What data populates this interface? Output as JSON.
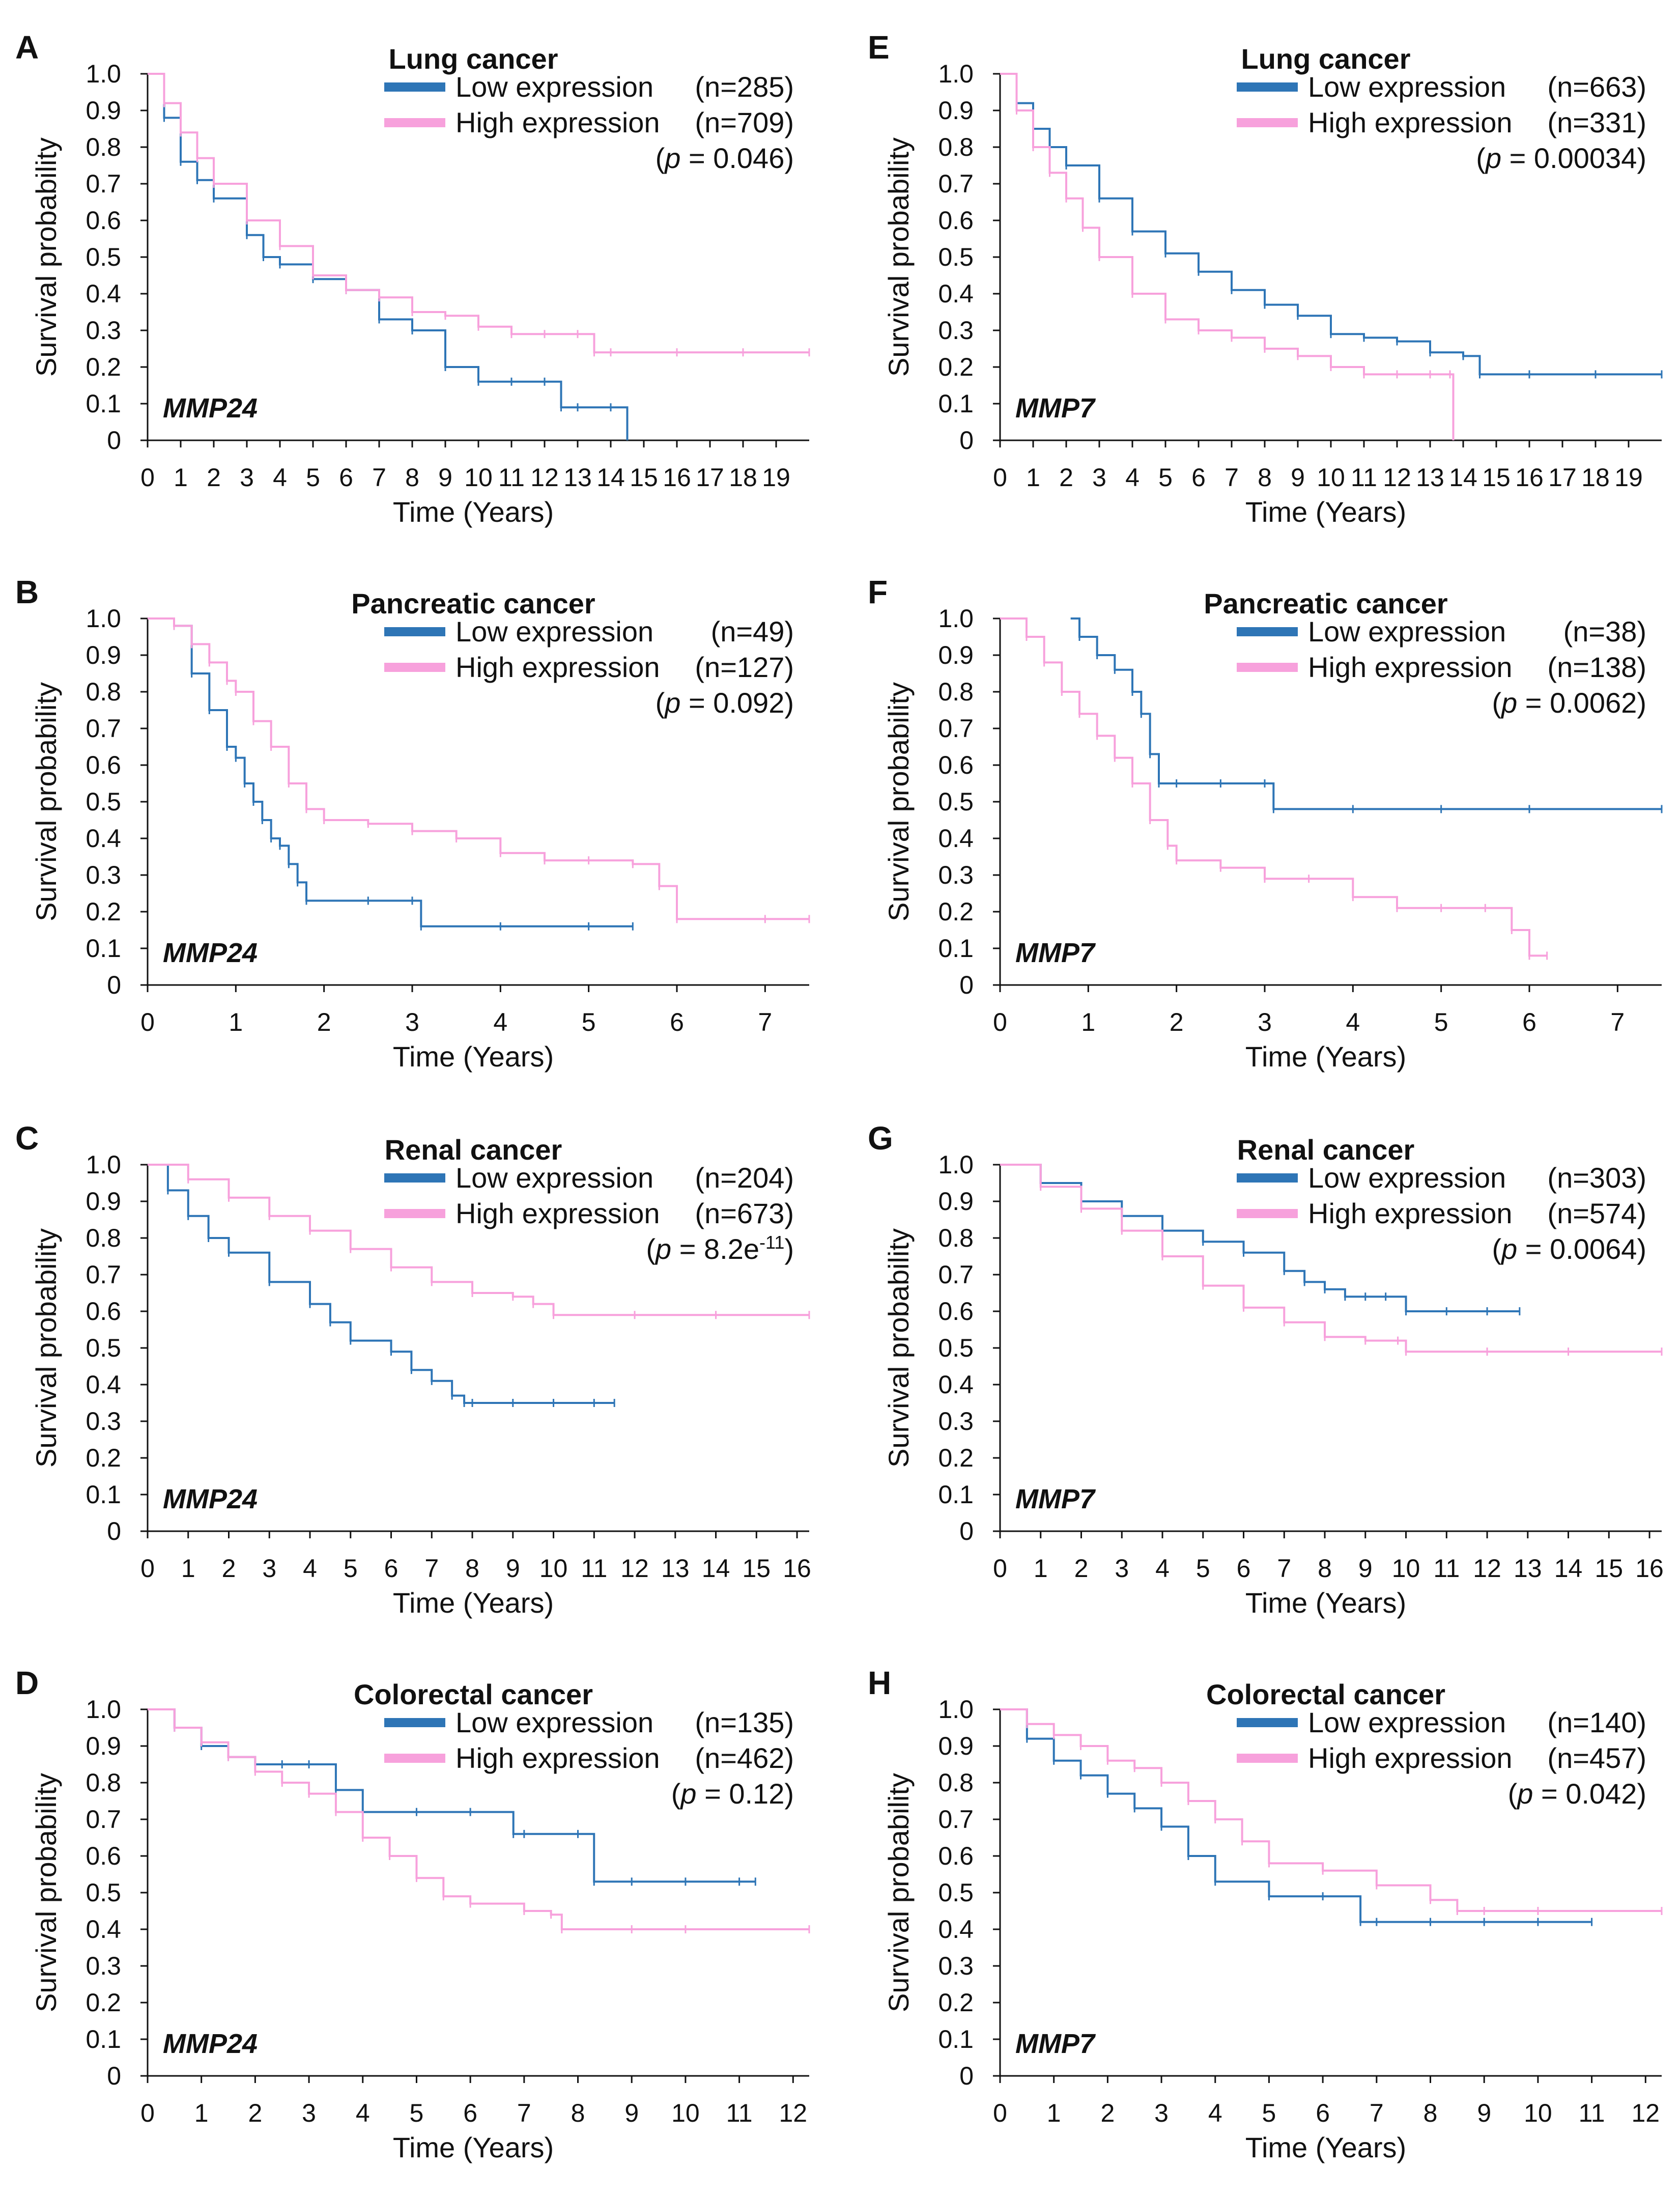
{
  "figure": {
    "colors": {
      "low": "#2E75B6",
      "high": "#F7A1DC",
      "axis": "#111111"
    },
    "axis_labels": {
      "ylabel": "Survival probability",
      "xlabel": "Time (Years)"
    },
    "legend_labels": {
      "low": "Low  expression",
      "high": "High expression"
    }
  },
  "chart_data": [
    {
      "panel": "A",
      "type": "line",
      "title": "Lung cancer",
      "gene": "MMP24",
      "low_n": "(n=285)",
      "high_n": "(n=709)",
      "p_prefix": "(",
      "p_letter": "p",
      "p_value": " = 0.046)",
      "p_sup": "",
      "p_suffix": "",
      "xlim": [
        0,
        20
      ],
      "ylim": [
        0,
        1
      ],
      "xticks": [
        "0",
        "1",
        "2",
        "3",
        "4",
        "5",
        "6",
        "7",
        "8",
        "9",
        "10",
        "11",
        "12",
        "13",
        "14",
        "15",
        "16",
        "17",
        "18",
        "19"
      ],
      "yticks": [
        "0",
        "0.1",
        "0.2",
        "0.3",
        "0.4",
        "0.5",
        "0.6",
        "0.7",
        "0.8",
        "0.9",
        "1.0"
      ],
      "series": [
        {
          "name": "Low expression",
          "key": "low",
          "x": [
            0,
            0.5,
            1,
            1.5,
            2,
            3,
            3.5,
            4,
            5,
            6,
            7,
            8,
            9,
            10,
            11,
            12,
            12.5,
            13,
            14,
            14.5
          ],
          "y": [
            1,
            0.88,
            0.76,
            0.71,
            0.66,
            0.56,
            0.5,
            0.48,
            0.44,
            0.41,
            0.33,
            0.3,
            0.2,
            0.16,
            0.16,
            0.16,
            0.09,
            0.09,
            0.09,
            0
          ]
        },
        {
          "name": "High expression",
          "key": "high",
          "x": [
            0,
            0.5,
            1,
            1.5,
            2,
            3,
            4,
            5,
            6,
            7,
            8,
            9,
            10,
            11,
            12,
            13,
            13.5,
            14,
            16,
            18,
            20
          ],
          "y": [
            1,
            0.92,
            0.84,
            0.77,
            0.7,
            0.6,
            0.53,
            0.45,
            0.41,
            0.39,
            0.35,
            0.34,
            0.31,
            0.29,
            0.29,
            0.29,
            0.24,
            0.24,
            0.24,
            0.24,
            0.24
          ]
        }
      ]
    },
    {
      "panel": "B",
      "type": "line",
      "title": "Pancreatic cancer",
      "gene": "MMP24",
      "low_n": "(n=49)",
      "high_n": "(n=127)",
      "p_prefix": "(",
      "p_letter": "p",
      "p_value": " = 0.092)",
      "p_sup": "",
      "p_suffix": "",
      "xlim": [
        0,
        7.5
      ],
      "ylim": [
        0,
        1
      ],
      "xticks": [
        "0",
        "1",
        "2",
        "3",
        "4",
        "5",
        "6",
        "7"
      ],
      "yticks": [
        "0",
        "0.1",
        "0.2",
        "0.3",
        "0.4",
        "0.5",
        "0.6",
        "0.7",
        "0.8",
        "0.9",
        "1.0"
      ],
      "series": [
        {
          "name": "Low expression",
          "key": "low",
          "x": [
            0,
            0.3,
            0.5,
            0.7,
            0.9,
            1,
            1.1,
            1.2,
            1.3,
            1.4,
            1.5,
            1.6,
            1.7,
            1.8,
            2.5,
            3,
            3.1,
            4,
            5,
            5.5
          ],
          "y": [
            1,
            0.98,
            0.85,
            0.75,
            0.65,
            0.62,
            0.55,
            0.5,
            0.45,
            0.4,
            0.38,
            0.33,
            0.28,
            0.23,
            0.23,
            0.23,
            0.16,
            0.16,
            0.16,
            0.16
          ]
        },
        {
          "name": "High expression",
          "key": "high",
          "x": [
            0,
            0.3,
            0.5,
            0.7,
            0.9,
            1,
            1.2,
            1.4,
            1.6,
            1.8,
            2,
            2.5,
            3,
            3.5,
            4,
            4.5,
            5,
            5.5,
            5.8,
            6,
            7,
            7.5
          ],
          "y": [
            1,
            0.98,
            0.93,
            0.88,
            0.83,
            0.8,
            0.72,
            0.65,
            0.55,
            0.48,
            0.45,
            0.44,
            0.42,
            0.4,
            0.36,
            0.34,
            0.34,
            0.33,
            0.27,
            0.18,
            0.18,
            0.18
          ]
        }
      ]
    },
    {
      "panel": "C",
      "type": "line",
      "title": "Renal cancer",
      "gene": "MMP24",
      "low_n": "(n=204)",
      "high_n": "(n=673)",
      "p_prefix": "(",
      "p_letter": "p",
      "p_value": " = 8.2e",
      "p_sup": "-11",
      "p_suffix": ")",
      "xlim": [
        0,
        16.3
      ],
      "ylim": [
        0,
        1
      ],
      "xticks": [
        "0",
        "1",
        "2",
        "3",
        "4",
        "5",
        "6",
        "7",
        "8",
        "9",
        "10",
        "11",
        "12",
        "13",
        "14",
        "15",
        "16"
      ],
      "yticks": [
        "0",
        "0.1",
        "0.2",
        "0.3",
        "0.4",
        "0.5",
        "0.6",
        "0.7",
        "0.8",
        "0.9",
        "1.0"
      ],
      "series": [
        {
          "name": "Low expression",
          "key": "low",
          "x": [
            0,
            0.5,
            1,
            1.5,
            2,
            3,
            4,
            4.5,
            5,
            6,
            6.5,
            7,
            7.5,
            7.8,
            8,
            9,
            10,
            11,
            11.5
          ],
          "y": [
            1,
            0.93,
            0.86,
            0.8,
            0.76,
            0.68,
            0.62,
            0.57,
            0.52,
            0.49,
            0.44,
            0.41,
            0.37,
            0.35,
            0.35,
            0.35,
            0.35,
            0.35,
            0.35
          ]
        },
        {
          "name": "High expression",
          "key": "high",
          "x": [
            0,
            1,
            2,
            3,
            4,
            5,
            6,
            7,
            8,
            9,
            9.5,
            10,
            12,
            14,
            16.3
          ],
          "y": [
            1,
            0.96,
            0.91,
            0.86,
            0.82,
            0.77,
            0.72,
            0.68,
            0.65,
            0.64,
            0.62,
            0.59,
            0.59,
            0.59,
            0.59
          ]
        }
      ]
    },
    {
      "panel": "D",
      "type": "line",
      "title": "Colorectal cancer",
      "gene": "MMP24",
      "low_n": "(n=135)",
      "high_n": "(n=462)",
      "p_prefix": "(",
      "p_letter": "p",
      "p_value": " = 0.12)",
      "p_sup": "",
      "p_suffix": "",
      "xlim": [
        0,
        12.3
      ],
      "ylim": [
        0,
        1
      ],
      "xticks": [
        "0",
        "1",
        "2",
        "3",
        "4",
        "5",
        "6",
        "7",
        "8",
        "9",
        "10",
        "11",
        "12"
      ],
      "yticks": [
        "0",
        "0.1",
        "0.2",
        "0.3",
        "0.4",
        "0.5",
        "0.6",
        "0.7",
        "0.8",
        "0.9",
        "1.0"
      ],
      "series": [
        {
          "name": "Low expression",
          "key": "low",
          "x": [
            0,
            0.5,
            1,
            1.5,
            2,
            2.5,
            3,
            3.5,
            4,
            5,
            6,
            6.8,
            7,
            8,
            8.3,
            9,
            10,
            11,
            11.3
          ],
          "y": [
            1,
            0.95,
            0.9,
            0.87,
            0.85,
            0.85,
            0.85,
            0.78,
            0.72,
            0.72,
            0.72,
            0.66,
            0.66,
            0.66,
            0.53,
            0.53,
            0.53,
            0.53,
            0.53
          ]
        },
        {
          "name": "High expression",
          "key": "high",
          "x": [
            0,
            0.5,
            1,
            1.5,
            2,
            2.5,
            3,
            3.5,
            4,
            4.5,
            5,
            5.5,
            6,
            7,
            7.5,
            7.7,
            9,
            10,
            12.3
          ],
          "y": [
            1,
            0.95,
            0.91,
            0.87,
            0.83,
            0.8,
            0.77,
            0.72,
            0.65,
            0.6,
            0.54,
            0.49,
            0.47,
            0.45,
            0.44,
            0.4,
            0.4,
            0.4,
            0.4
          ]
        }
      ]
    },
    {
      "panel": "E",
      "type": "line",
      "title": "Lung cancer",
      "gene": "MMP7",
      "low_n": "(n=663)",
      "high_n": "(n=331)",
      "p_prefix": "(",
      "p_letter": "p",
      "p_value": " = 0.00034)",
      "p_sup": "",
      "p_suffix": "",
      "xlim": [
        0,
        20
      ],
      "ylim": [
        0,
        1
      ],
      "xticks": [
        "0",
        "1",
        "2",
        "3",
        "4",
        "5",
        "6",
        "7",
        "8",
        "9",
        "10",
        "11",
        "12",
        "13",
        "14",
        "15",
        "16",
        "17",
        "18",
        "19"
      ],
      "yticks": [
        "0",
        "0.1",
        "0.2",
        "0.3",
        "0.4",
        "0.5",
        "0.6",
        "0.7",
        "0.8",
        "0.9",
        "1.0"
      ],
      "series": [
        {
          "name": "Low expression",
          "key": "low",
          "x": [
            0,
            0.5,
            1,
            1.5,
            2,
            3,
            4,
            5,
            6,
            7,
            8,
            9,
            10,
            11,
            12,
            13,
            14,
            14.5,
            16,
            18,
            20
          ],
          "y": [
            1,
            0.92,
            0.85,
            0.8,
            0.75,
            0.66,
            0.57,
            0.51,
            0.46,
            0.41,
            0.37,
            0.34,
            0.29,
            0.28,
            0.27,
            0.24,
            0.23,
            0.18,
            0.18,
            0.18,
            0.18
          ]
        },
        {
          "name": "High expression",
          "key": "high",
          "x": [
            0,
            0.5,
            1,
            1.5,
            2,
            2.5,
            3,
            4,
            5,
            6,
            7,
            8,
            9,
            10,
            11,
            12,
            13,
            13.6,
            13.7
          ],
          "y": [
            1,
            0.9,
            0.8,
            0.73,
            0.66,
            0.58,
            0.5,
            0.4,
            0.33,
            0.3,
            0.28,
            0.25,
            0.23,
            0.2,
            0.18,
            0.18,
            0.18,
            0.18,
            0
          ]
        }
      ]
    },
    {
      "panel": "F",
      "type": "line",
      "title": "Pancreatic cancer",
      "gene": "MMP7",
      "low_n": "(n=38)",
      "high_n": "(n=138)",
      "p_prefix": "(",
      "p_letter": "p",
      "p_value": " = 0.0062)",
      "p_sup": "",
      "p_suffix": "",
      "xlim": [
        0,
        7.5
      ],
      "ylim": [
        0,
        1
      ],
      "xticks": [
        "0",
        "1",
        "2",
        "3",
        "4",
        "5",
        "6",
        "7"
      ],
      "yticks": [
        "0",
        "0.1",
        "0.2",
        "0.3",
        "0.4",
        "0.5",
        "0.6",
        "0.7",
        "0.8",
        "0.9",
        "1.0"
      ],
      "series": [
        {
          "name": "Low expression",
          "key": "low",
          "x": [
            0.8,
            0.9,
            1.1,
            1.3,
            1.5,
            1.6,
            1.7,
            1.8,
            2,
            2.5,
            3,
            3.1,
            4,
            5,
            6,
            7.5
          ],
          "y": [
            1,
            0.95,
            0.9,
            0.86,
            0.8,
            0.74,
            0.63,
            0.55,
            0.55,
            0.55,
            0.55,
            0.48,
            0.48,
            0.48,
            0.48,
            0.48
          ]
        },
        {
          "name": "High expression",
          "key": "high",
          "x": [
            0,
            0.3,
            0.5,
            0.7,
            0.9,
            1.1,
            1.3,
            1.5,
            1.7,
            1.9,
            2,
            2.5,
            3,
            3.5,
            4,
            4.5,
            5,
            5.5,
            5.8,
            6,
            6.2
          ],
          "y": [
            1,
            0.95,
            0.88,
            0.8,
            0.74,
            0.68,
            0.62,
            0.55,
            0.45,
            0.38,
            0.34,
            0.32,
            0.29,
            0.29,
            0.24,
            0.21,
            0.21,
            0.21,
            0.15,
            0.08,
            0.08
          ]
        }
      ]
    },
    {
      "panel": "G",
      "type": "line",
      "title": "Renal cancer",
      "gene": "MMP7",
      "low_n": "(n=303)",
      "high_n": "(n=574)",
      "p_prefix": "(",
      "p_letter": "p",
      "p_value": " = 0.0064)",
      "p_sup": "",
      "p_suffix": "",
      "xlim": [
        0,
        16.3
      ],
      "ylim": [
        0,
        1
      ],
      "xticks": [
        "0",
        "1",
        "2",
        "3",
        "4",
        "5",
        "6",
        "7",
        "8",
        "9",
        "10",
        "11",
        "12",
        "13",
        "14",
        "15",
        "16"
      ],
      "yticks": [
        "0",
        "0.1",
        "0.2",
        "0.3",
        "0.4",
        "0.5",
        "0.6",
        "0.7",
        "0.8",
        "0.9",
        "1.0"
      ],
      "series": [
        {
          "name": "Low expression",
          "key": "low",
          "x": [
            0,
            1,
            2,
            3,
            4,
            5,
            6,
            7,
            7.5,
            8,
            8.5,
            9,
            9.5,
            10,
            11,
            12,
            12.8
          ],
          "y": [
            1,
            0.95,
            0.9,
            0.86,
            0.82,
            0.79,
            0.76,
            0.71,
            0.68,
            0.66,
            0.64,
            0.64,
            0.64,
            0.6,
            0.6,
            0.6,
            0.6
          ]
        },
        {
          "name": "High expression",
          "key": "high",
          "x": [
            0,
            1,
            2,
            3,
            4,
            5,
            6,
            7,
            8,
            9,
            9.8,
            10,
            12,
            14,
            16.3
          ],
          "y": [
            1,
            0.94,
            0.88,
            0.82,
            0.75,
            0.67,
            0.61,
            0.57,
            0.53,
            0.52,
            0.52,
            0.49,
            0.49,
            0.49,
            0.49
          ]
        }
      ]
    },
    {
      "panel": "H",
      "type": "line",
      "title": "Colorectal cancer",
      "gene": "MMP7",
      "low_n": "(n=140)",
      "high_n": "(n=457)",
      "p_prefix": "(",
      "p_letter": "p",
      "p_value": " = 0.042)",
      "p_sup": "",
      "p_suffix": "",
      "xlim": [
        0,
        12.3
      ],
      "ylim": [
        0,
        1
      ],
      "xticks": [
        "0",
        "1",
        "2",
        "3",
        "4",
        "5",
        "6",
        "7",
        "8",
        "9",
        "10",
        "11",
        "12"
      ],
      "yticks": [
        "0",
        "0.1",
        "0.2",
        "0.3",
        "0.4",
        "0.5",
        "0.6",
        "0.7",
        "0.8",
        "0.9",
        "1.0"
      ],
      "series": [
        {
          "name": "Low expression",
          "key": "low",
          "x": [
            0,
            0.5,
            1,
            1.5,
            2,
            2.5,
            3,
            3.5,
            4,
            5,
            6,
            6.7,
            7,
            8,
            9,
            10,
            11
          ],
          "y": [
            1,
            0.92,
            0.86,
            0.82,
            0.77,
            0.73,
            0.68,
            0.6,
            0.53,
            0.49,
            0.49,
            0.42,
            0.42,
            0.42,
            0.42,
            0.42,
            0.42
          ]
        },
        {
          "name": "High expression",
          "key": "high",
          "x": [
            0,
            0.5,
            1,
            1.5,
            2,
            2.5,
            3,
            3.5,
            4,
            4.5,
            5,
            6,
            7,
            8,
            8.5,
            9,
            10,
            12.3
          ],
          "y": [
            1,
            0.96,
            0.93,
            0.9,
            0.86,
            0.84,
            0.8,
            0.75,
            0.7,
            0.64,
            0.58,
            0.56,
            0.52,
            0.48,
            0.45,
            0.45,
            0.45,
            0.45
          ]
        }
      ]
    }
  ]
}
